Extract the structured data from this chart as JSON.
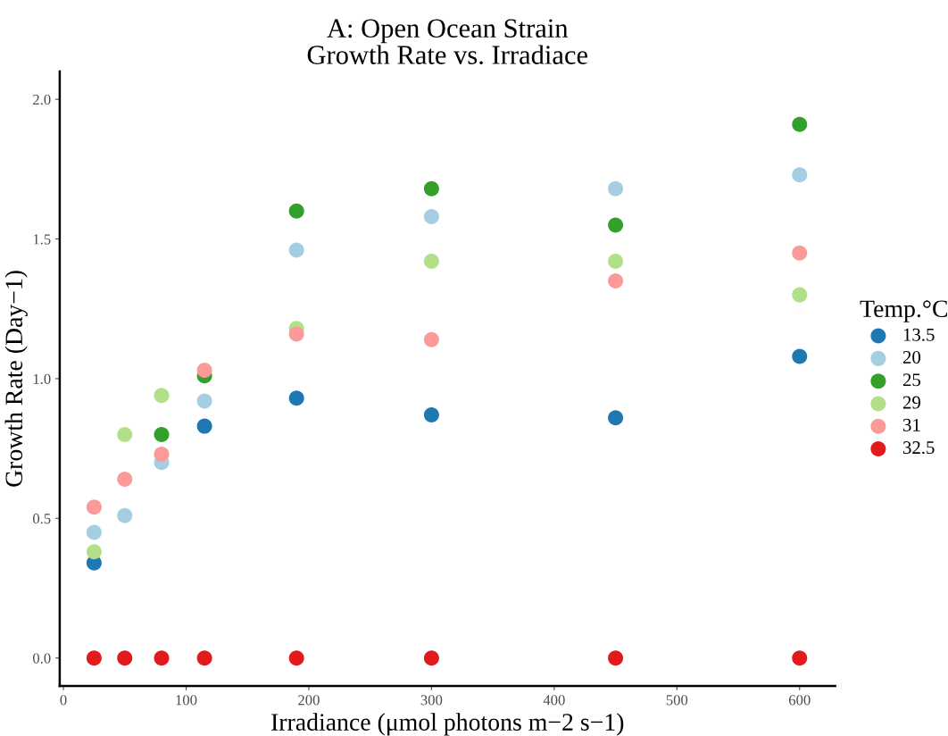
{
  "chart_data": {
    "type": "scatter",
    "title": "A: Open Ocean Strain\nGrowth Rate vs. Irradiace",
    "xlabel": "Irradiance (μmol photons m−2 s−1)",
    "ylabel": "Growth Rate (Day−1)",
    "legend_title": "Temp.°C",
    "x": [
      25,
      50,
      80,
      115,
      190,
      300,
      450,
      600
    ],
    "series": [
      {
        "name": "13.5",
        "color": "#1f78b4",
        "values": [
          0.34,
          null,
          null,
          0.83,
          0.93,
          0.87,
          0.86,
          1.08
        ]
      },
      {
        "name": "20",
        "color": "#a6cee3",
        "values": [
          0.45,
          0.51,
          0.7,
          0.92,
          1.46,
          1.58,
          1.68,
          1.73
        ]
      },
      {
        "name": "25",
        "color": "#33a02c",
        "values": [
          null,
          null,
          0.8,
          1.01,
          1.6,
          1.68,
          1.55,
          1.91
        ]
      },
      {
        "name": "29",
        "color": "#b2df8a",
        "values": [
          0.38,
          0.8,
          0.94,
          null,
          1.18,
          1.42,
          1.42,
          1.3
        ]
      },
      {
        "name": "31",
        "color": "#fb9a99",
        "values": [
          0.54,
          0.64,
          0.73,
          1.03,
          1.16,
          1.14,
          1.35,
          1.45
        ]
      },
      {
        "name": "32.5",
        "color": "#e31a1c",
        "values": [
          0,
          0,
          0,
          0,
          0,
          0,
          0,
          0
        ]
      }
    ],
    "xlim": [
      -3,
      629
    ],
    "xticks": [
      0,
      100,
      200,
      300,
      400,
      500,
      600
    ],
    "ylim": [
      -0.1,
      2.1
    ],
    "yticks": [
      {
        "value": 0,
        "label": "0.0"
      },
      {
        "value": 0.5,
        "label": "0.5"
      },
      {
        "value": 1,
        "label": "1.0"
      },
      {
        "value": 1.5,
        "label": "1.5"
      },
      {
        "value": 2,
        "label": "2.0"
      }
    ],
    "grid": false,
    "legend": "right",
    "marker": "circle"
  }
}
